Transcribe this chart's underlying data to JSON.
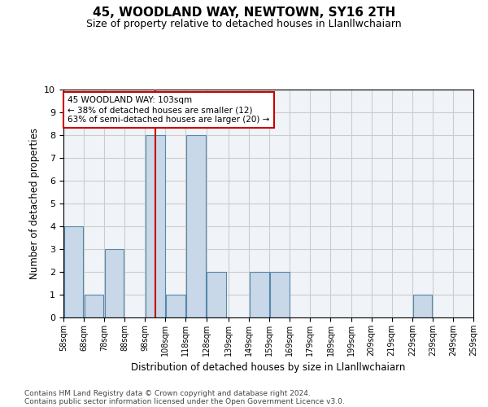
{
  "title": "45, WOODLAND WAY, NEWTOWN, SY16 2TH",
  "subtitle": "Size of property relative to detached houses in Llanllwchaiarn",
  "xlabel": "Distribution of detached houses by size in Llanllwchaiarn",
  "ylabel": "Number of detached properties",
  "footnote1": "Contains HM Land Registry data © Crown copyright and database right 2024.",
  "footnote2": "Contains public sector information licensed under the Open Government Licence v3.0.",
  "annotation_line1": "45 WOODLAND WAY: 103sqm",
  "annotation_line2": "← 38% of detached houses are smaller (12)",
  "annotation_line3": "63% of semi-detached houses are larger (20) →",
  "property_size": 103,
  "bar_left_edges": [
    58,
    68,
    78,
    88,
    98,
    108,
    118,
    128,
    139,
    149,
    159,
    169,
    179,
    189,
    199,
    209,
    219,
    229,
    239,
    249
  ],
  "bar_widths": [
    10,
    10,
    10,
    10,
    10,
    10,
    10,
    10,
    10,
    10,
    10,
    10,
    10,
    10,
    10,
    10,
    10,
    10,
    10,
    10
  ],
  "bar_heights": [
    4,
    1,
    3,
    0,
    8,
    1,
    8,
    2,
    0,
    2,
    2,
    0,
    0,
    0,
    0,
    0,
    0,
    1,
    0,
    0
  ],
  "tick_labels": [
    "58sqm",
    "68sqm",
    "78sqm",
    "88sqm",
    "98sqm",
    "108sqm",
    "118sqm",
    "128sqm",
    "139sqm",
    "149sqm",
    "159sqm",
    "169sqm",
    "179sqm",
    "189sqm",
    "199sqm",
    "209sqm",
    "219sqm",
    "229sqm",
    "239sqm",
    "249sqm",
    "259sqm"
  ],
  "bar_color": "#c8d8e8",
  "bar_edge_color": "#5588aa",
  "vline_color": "#cc0000",
  "vline_x": 103,
  "annotation_box_color": "#cc0000",
  "annotation_text_color": "#000000",
  "ylim": [
    0,
    10
  ],
  "yticks": [
    0,
    1,
    2,
    3,
    4,
    5,
    6,
    7,
    8,
    9,
    10
  ],
  "grid_color": "#cccccc",
  "background_color": "#f0f4f8",
  "title_fontsize": 11,
  "subtitle_fontsize": 9,
  "axis_label_fontsize": 8.5,
  "tick_fontsize": 7,
  "annotation_fontsize": 7.5,
  "footnote_fontsize": 6.5
}
